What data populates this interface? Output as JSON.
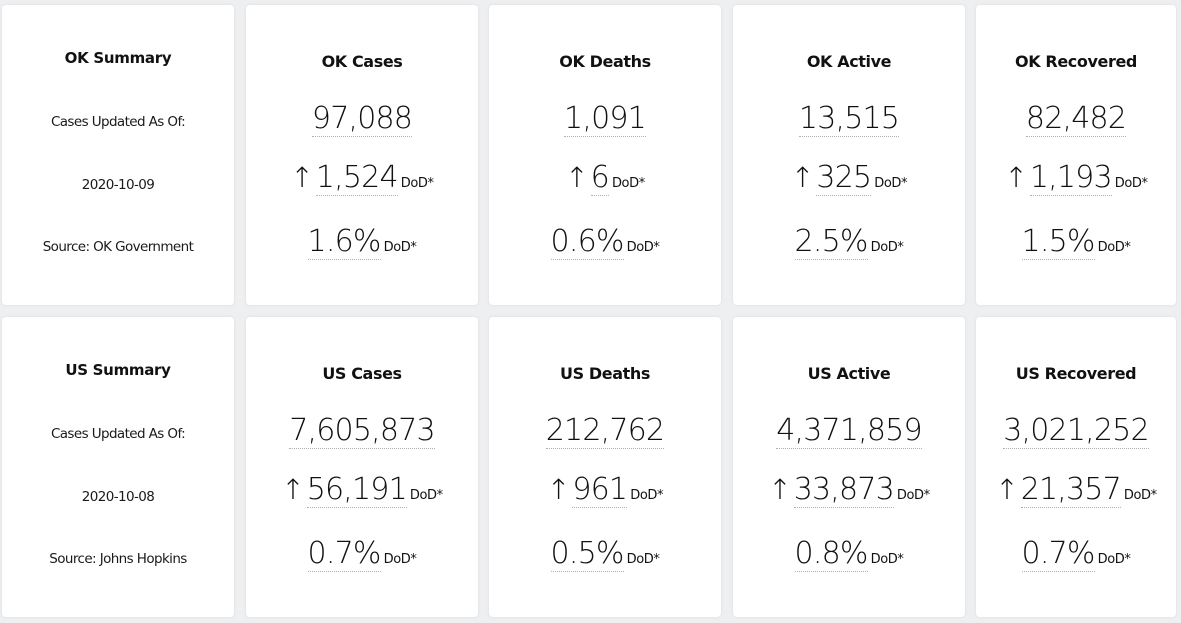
{
  "rows": [
    {
      "summary": {
        "title": "OK Summary",
        "updated_label": "Cases Updated As Of:",
        "date": "2020-10-09",
        "source": "Source: OK Government"
      },
      "stats": [
        {
          "title": "OK Cases",
          "total": "97,088",
          "arrow": "↑",
          "change": "1,524",
          "change_unit": "DoD*",
          "pct": "1.6%",
          "pct_unit": "DoD*"
        },
        {
          "title": "OK Deaths",
          "total": "1,091",
          "arrow": "↑",
          "change": "6",
          "change_unit": "DoD*",
          "pct": "0.6%",
          "pct_unit": "DoD*"
        },
        {
          "title": "OK Active",
          "total": "13,515",
          "arrow": "↑",
          "change": "325",
          "change_unit": "DoD*",
          "pct": "2.5%",
          "pct_unit": "DoD*"
        },
        {
          "title": "OK Recovered",
          "total": "82,482",
          "arrow": "↑",
          "change": "1,193",
          "change_unit": "DoD*",
          "pct": "1.5%",
          "pct_unit": "DoD*"
        }
      ]
    },
    {
      "summary": {
        "title": "US Summary",
        "updated_label": "Cases Updated As Of:",
        "date": "2020-10-08",
        "source": "Source: Johns Hopkins"
      },
      "stats": [
        {
          "title": "US Cases",
          "total": "7,605,873",
          "arrow": "↑",
          "change": "56,191",
          "change_unit": "DoD*",
          "pct": "0.7%",
          "pct_unit": "DoD*"
        },
        {
          "title": "US Deaths",
          "total": "212,762",
          "arrow": "↑",
          "change": "961",
          "change_unit": "DoD*",
          "pct": "0.5%",
          "pct_unit": "DoD*"
        },
        {
          "title": "US Active",
          "total": "4,371,859",
          "arrow": "↑",
          "change": "33,873",
          "change_unit": "DoD*",
          "pct": "0.8%",
          "pct_unit": "DoD*"
        },
        {
          "title": "US Recovered",
          "total": "3,021,252",
          "arrow": "↑",
          "change": "21,357",
          "change_unit": "DoD*",
          "pct": "0.7%",
          "pct_unit": "DoD*"
        }
      ]
    }
  ]
}
